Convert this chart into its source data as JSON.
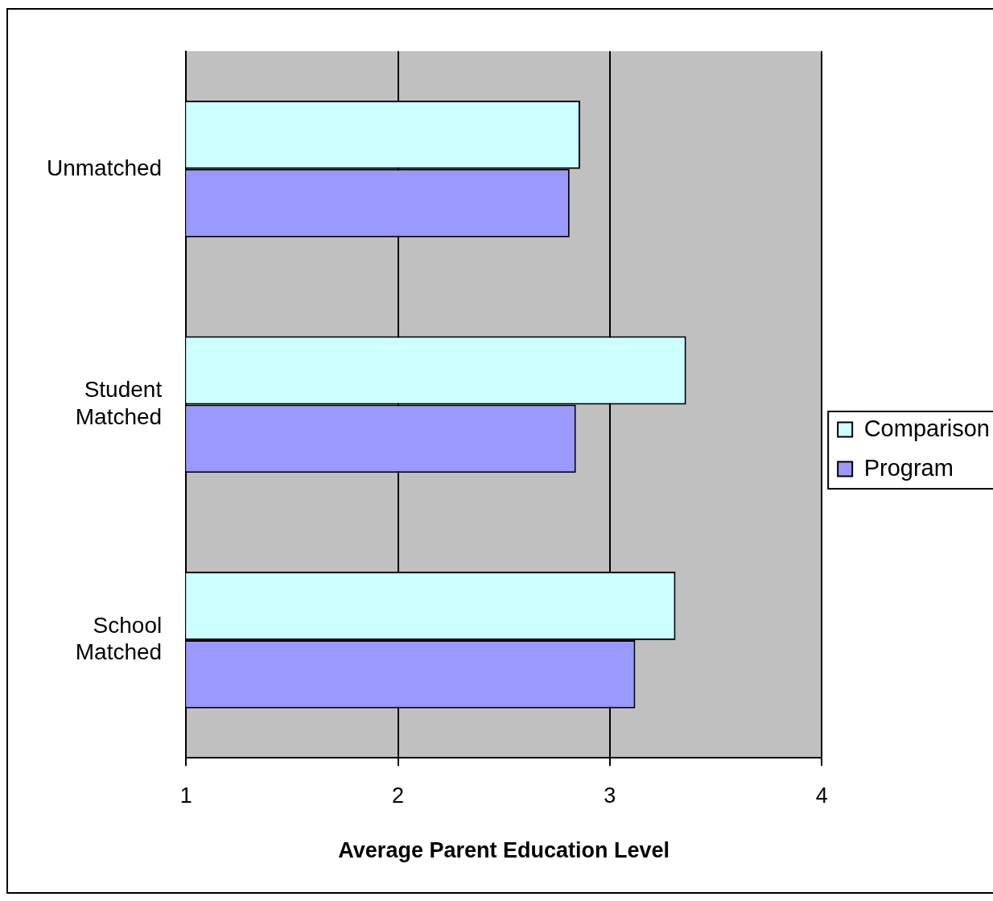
{
  "chart_data": {
    "type": "bar",
    "orientation": "horizontal",
    "xlabel": "Average Parent Education Level",
    "categories": [
      "Unmatched",
      "Student Matched",
      "School Matched"
    ],
    "series": [
      {
        "name": "Comparison",
        "color": "#ccffff",
        "values": [
          2.86,
          3.36,
          3.31
        ]
      },
      {
        "name": "Program",
        "color": "#9999ff",
        "values": [
          2.81,
          2.84,
          3.12
        ]
      }
    ],
    "xlim": [
      1,
      4
    ],
    "xticks": [
      1,
      2,
      3,
      4
    ],
    "grid": "x",
    "legend": "right"
  }
}
